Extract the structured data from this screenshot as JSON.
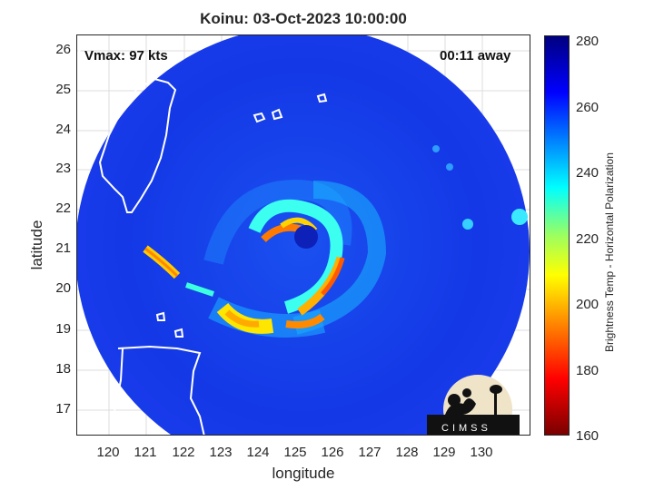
{
  "title": "Koinu: 03-Oct-2023 10:00:00",
  "vmax_label": "Vmax: 97 kts",
  "away_label": "00:11 away",
  "xlabel": "longitude",
  "ylabel": "latitude",
  "x_ticks": [
    "120",
    "121",
    "122",
    "123",
    "124",
    "125",
    "126",
    "127",
    "128",
    "129",
    "130"
  ],
  "y_ticks": [
    "26",
    "25",
    "24",
    "23",
    "22",
    "21",
    "20",
    "19",
    "18",
    "17"
  ],
  "colorbar": {
    "label": "Brightness Temp - Horizontal Polarization",
    "ticks": [
      "280",
      "260",
      "240",
      "220",
      "200",
      "180",
      "160"
    ],
    "range": [
      160,
      280
    ]
  },
  "logo_text": "CIMSS",
  "colors": {
    "background_cold": "#0a1fd0",
    "disk_blue": "#1438e6",
    "coast": "#ffffff"
  }
}
